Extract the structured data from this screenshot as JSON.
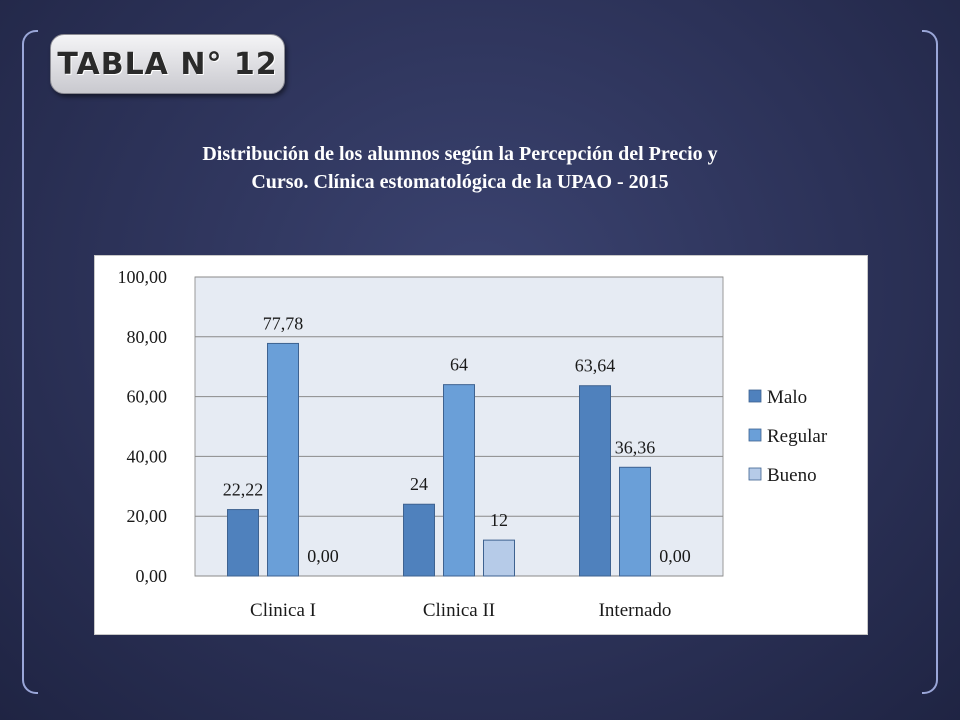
{
  "slide": {
    "badge_label": "TABLA N° 12",
    "subtitle_line1": "Distribución de los alumnos según la Percepción del Precio y",
    "subtitle_line2": "Curso. Clínica estomatológica de la UPAO - 2015"
  },
  "chart_data": {
    "type": "bar",
    "title": "",
    "xlabel": "",
    "ylabel": "",
    "categories": [
      "Clinica I",
      "Clinica II",
      "Internado"
    ],
    "ylim": [
      0,
      100
    ],
    "yticks": [
      "0,00",
      "20,00",
      "40,00",
      "60,00",
      "80,00",
      "100,00"
    ],
    "ytick_values": [
      0,
      20,
      40,
      60,
      80,
      100
    ],
    "grid": true,
    "legend_position": "right",
    "series": [
      {
        "name": "Malo",
        "color": "#4f81bd",
        "values": [
          22.22,
          24,
          63.64
        ],
        "labels": [
          "22,22",
          "24",
          "63,64"
        ]
      },
      {
        "name": "Regular",
        "color": "#6a9fd8",
        "values": [
          77.78,
          64,
          36.36
        ],
        "labels": [
          "77,78",
          "64",
          "36,36"
        ]
      },
      {
        "name": "Bueno",
        "color": "#b6cbe8",
        "values": [
          0,
          12,
          0
        ],
        "labels": [
          "0,00",
          "12",
          "0,00"
        ]
      }
    ]
  }
}
